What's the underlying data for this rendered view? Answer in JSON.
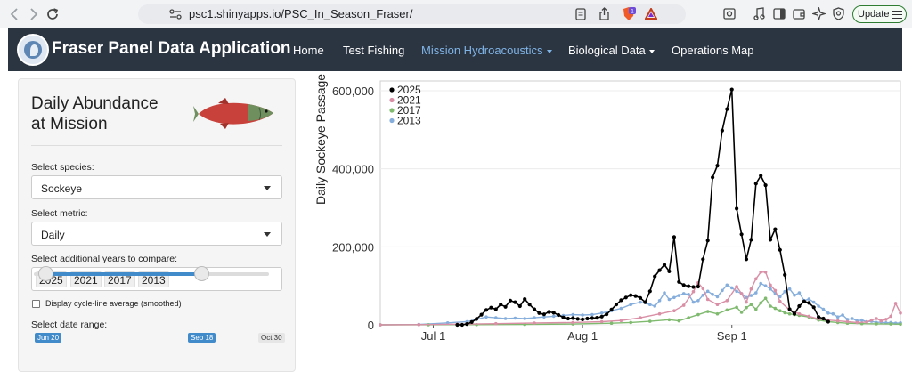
{
  "browser": {
    "url": "psc1.shinyapps.io/PSC_In_Season_Fraser/",
    "update_label": "Update",
    "brave_badge": "1"
  },
  "navbar": {
    "brand": "Fraser Panel Data Application",
    "items": [
      {
        "label": "Home"
      },
      {
        "label": "Test Fishing"
      },
      {
        "label": "Mission Hydroacoustics"
      },
      {
        "label": "Biological Data"
      },
      {
        "label": "Operations Map"
      }
    ],
    "active_color": "#7fb4e6",
    "background": "#2b3441"
  },
  "sidebar": {
    "title_line1": "Daily Abundance",
    "title_line2": "at Mission",
    "species": {
      "label": "Select species:",
      "value": "Sockeye"
    },
    "metric": {
      "label": "Select metric:",
      "value": "Daily"
    },
    "years": {
      "label": "Select additional years to compare:",
      "chips": [
        "2025",
        "2021",
        "2017",
        "2013"
      ]
    },
    "cycle_avg_label": "Display cycle-line average (smoothed)",
    "cycle_avg_checked": false,
    "date_range": {
      "label": "Select date range:",
      "start": "Jun 20",
      "end": "Sep 18",
      "max": "Oct 30"
    }
  },
  "chart_data": {
    "type": "line",
    "ylabel": "Daily Sockeye Passage",
    "xlabel": "",
    "ylim": [
      0,
      625000
    ],
    "x_ticks": [
      "Jul 1",
      "Aug 1",
      "Sep 1"
    ],
    "y_ticks": [
      "0",
      "200,000",
      "400,000",
      "600,000"
    ],
    "legend_position": "top-left",
    "x_start": "Jun 20",
    "x_end": "Sep 18",
    "series": [
      {
        "name": "2025",
        "color": "#000000",
        "values": [
          [
            16,
            0
          ],
          [
            17,
            0
          ],
          [
            18,
            2000
          ],
          [
            19,
            7000
          ],
          [
            20,
            15000
          ],
          [
            21,
            26000
          ],
          [
            22,
            38000
          ],
          [
            23,
            44000
          ],
          [
            24,
            40000
          ],
          [
            25,
            52000
          ],
          [
            26,
            46000
          ],
          [
            27,
            62000
          ],
          [
            28,
            58000
          ],
          [
            29,
            48000
          ],
          [
            30,
            66000
          ],
          [
            31,
            52000
          ],
          [
            32,
            40000
          ],
          [
            33,
            30000
          ],
          [
            34,
            27000
          ],
          [
            35,
            33000
          ],
          [
            36,
            31000
          ],
          [
            37,
            25000
          ],
          [
            38,
            19000
          ],
          [
            39,
            16000
          ],
          [
            40,
            17000
          ],
          [
            41,
            15000
          ],
          [
            42,
            14000
          ],
          [
            43,
            16000
          ],
          [
            44,
            17000
          ],
          [
            45,
            18000
          ],
          [
            46,
            21000
          ],
          [
            47,
            27000
          ],
          [
            48,
            39000
          ],
          [
            49,
            52000
          ],
          [
            50,
            63000
          ],
          [
            51,
            70000
          ],
          [
            52,
            76000
          ],
          [
            53,
            74000
          ],
          [
            54,
            69000
          ],
          [
            55,
            58000
          ],
          [
            56,
            86000
          ],
          [
            57,
            124000
          ],
          [
            58,
            140000
          ],
          [
            59,
            154000
          ],
          [
            60,
            137000
          ],
          [
            61,
            225000
          ],
          [
            62,
            110000
          ],
          [
            63,
            102000
          ],
          [
            64,
            99000
          ],
          [
            65,
            97000
          ],
          [
            66,
            98000
          ],
          [
            67,
            168000
          ],
          [
            68,
            216000
          ],
          [
            69,
            378000
          ],
          [
            70,
            408000
          ],
          [
            71,
            498000
          ],
          [
            72,
            553000
          ],
          [
            73,
            603000
          ],
          [
            74,
            298000
          ],
          [
            75,
            232000
          ],
          [
            76,
            168000
          ],
          [
            77,
            218000
          ],
          [
            78,
            362000
          ],
          [
            79,
            382000
          ],
          [
            80,
            358000
          ],
          [
            81,
            218000
          ],
          [
            82,
            245000
          ],
          [
            83,
            192000
          ],
          [
            84,
            128000
          ],
          [
            85,
            40000
          ],
          [
            86,
            28000
          ],
          [
            87,
            48000
          ],
          [
            88,
            60000
          ],
          [
            89,
            56000
          ],
          [
            90,
            45000
          ],
          [
            91,
            20000
          ],
          [
            92,
            16000
          ],
          [
            93,
            8000
          ]
        ]
      },
      {
        "name": "2021",
        "color": "#d98fa6",
        "values": [
          [
            0,
            0
          ],
          [
            8,
            500
          ],
          [
            16,
            1500
          ],
          [
            24,
            3000
          ],
          [
            32,
            4500
          ],
          [
            40,
            6000
          ],
          [
            46,
            8000
          ],
          [
            50,
            11000
          ],
          [
            54,
            18000
          ],
          [
            58,
            28000
          ],
          [
            61,
            36000
          ],
          [
            63,
            50000
          ],
          [
            65,
            85000
          ],
          [
            66,
            108000
          ],
          [
            67,
            93000
          ],
          [
            68,
            65000
          ],
          [
            70,
            52000
          ],
          [
            72,
            62000
          ],
          [
            74,
            98000
          ],
          [
            75,
            80000
          ],
          [
            76,
            58000
          ],
          [
            77,
            92000
          ],
          [
            78,
            118000
          ],
          [
            79,
            135000
          ],
          [
            80,
            135000
          ],
          [
            81,
            102000
          ],
          [
            82,
            88000
          ],
          [
            83,
            60000
          ],
          [
            85,
            38000
          ],
          [
            87,
            28000
          ],
          [
            89,
            22000
          ],
          [
            91,
            15000
          ],
          [
            93,
            12000
          ],
          [
            95,
            10000
          ],
          [
            97,
            8000
          ],
          [
            99,
            6000
          ],
          [
            101,
            7000
          ],
          [
            102,
            12000
          ],
          [
            103,
            16000
          ],
          [
            104,
            10000
          ],
          [
            105,
            14000
          ],
          [
            106,
            22000
          ],
          [
            107,
            55000
          ],
          [
            108,
            30000
          ]
        ]
      },
      {
        "name": "2017",
        "color": "#7fba6f",
        "values": [
          [
            0,
            0
          ],
          [
            10,
            200
          ],
          [
            20,
            500
          ],
          [
            30,
            1000
          ],
          [
            40,
            2000
          ],
          [
            48,
            4000
          ],
          [
            52,
            6000
          ],
          [
            56,
            9000
          ],
          [
            60,
            13000
          ],
          [
            62,
            10000
          ],
          [
            64,
            18000
          ],
          [
            66,
            26000
          ],
          [
            68,
            34000
          ],
          [
            70,
            28000
          ],
          [
            72,
            38000
          ],
          [
            74,
            45000
          ],
          [
            75,
            32000
          ],
          [
            76,
            44000
          ],
          [
            77,
            52000
          ],
          [
            78,
            40000
          ],
          [
            79,
            56000
          ],
          [
            80,
            68000
          ],
          [
            81,
            48000
          ],
          [
            82,
            42000
          ],
          [
            83,
            36000
          ],
          [
            84,
            31000
          ],
          [
            85,
            28000
          ],
          [
            86,
            26000
          ],
          [
            87,
            24000
          ],
          [
            89,
            20000
          ],
          [
            91,
            12000
          ],
          [
            93,
            8000
          ],
          [
            95,
            6000
          ],
          [
            97,
            4000
          ],
          [
            100,
            3000
          ],
          [
            103,
            2500
          ],
          [
            106,
            2000
          ],
          [
            108,
            1500
          ]
        ]
      },
      {
        "name": "2013",
        "color": "#86aedc",
        "values": [
          [
            0,
            0
          ],
          [
            8,
            1000
          ],
          [
            14,
            5000
          ],
          [
            18,
            8000
          ],
          [
            20,
            14000
          ],
          [
            22,
            20000
          ],
          [
            24,
            18000
          ],
          [
            26,
            16000
          ],
          [
            28,
            17000
          ],
          [
            30,
            16000
          ],
          [
            32,
            18000
          ],
          [
            34,
            20000
          ],
          [
            36,
            22000
          ],
          [
            38,
            24000
          ],
          [
            40,
            26000
          ],
          [
            42,
            25000
          ],
          [
            44,
            26000
          ],
          [
            46,
            30000
          ],
          [
            48,
            36000
          ],
          [
            50,
            42000
          ],
          [
            52,
            52000
          ],
          [
            54,
            58000
          ],
          [
            56,
            52000
          ],
          [
            57,
            48000
          ],
          [
            58,
            62000
          ],
          [
            59,
            82000
          ],
          [
            60,
            65000
          ],
          [
            61,
            70000
          ],
          [
            62,
            75000
          ],
          [
            63,
            80000
          ],
          [
            64,
            78000
          ],
          [
            65,
            58000
          ],
          [
            66,
            62000
          ],
          [
            67,
            76000
          ],
          [
            68,
            86000
          ],
          [
            69,
            78000
          ],
          [
            70,
            72000
          ],
          [
            71,
            88000
          ],
          [
            72,
            102000
          ],
          [
            73,
            95000
          ],
          [
            74,
            86000
          ],
          [
            75,
            80000
          ],
          [
            76,
            70000
          ],
          [
            77,
            75000
          ],
          [
            78,
            82000
          ],
          [
            79,
            106000
          ],
          [
            80,
            100000
          ],
          [
            81,
            92000
          ],
          [
            82,
            80000
          ],
          [
            83,
            72000
          ],
          [
            84,
            85000
          ],
          [
            85,
            92000
          ],
          [
            86,
            76000
          ],
          [
            87,
            82000
          ],
          [
            88,
            62000
          ],
          [
            89,
            66000
          ],
          [
            90,
            58000
          ],
          [
            91,
            48000
          ],
          [
            92,
            40000
          ],
          [
            93,
            30000
          ],
          [
            94,
            28000
          ],
          [
            95,
            20000
          ],
          [
            96,
            25000
          ],
          [
            97,
            14000
          ],
          [
            98,
            16000
          ],
          [
            99,
            10000
          ],
          [
            100,
            12000
          ],
          [
            101,
            8000
          ],
          [
            102,
            9000
          ],
          [
            103,
            6000
          ],
          [
            104,
            7000
          ],
          [
            105,
            5000
          ],
          [
            106,
            6000
          ],
          [
            107,
            4000
          ],
          [
            108,
            5000
          ]
        ]
      }
    ]
  }
}
